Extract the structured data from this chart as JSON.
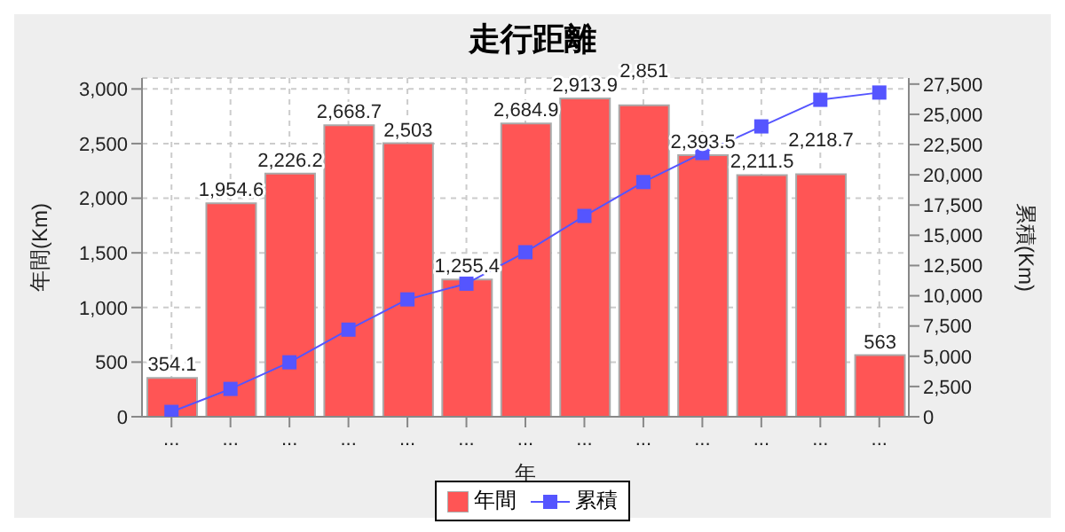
{
  "chart_data": {
    "type": "bar",
    "title": "走行距離",
    "xlabel": "年",
    "ylabel": "年間(Km)",
    "y2label": "累積(Km)",
    "categories": [
      "...",
      "...",
      "...",
      "...",
      "...",
      "...",
      "...",
      "...",
      "...",
      "...",
      "...",
      "...",
      "..."
    ],
    "series": [
      {
        "name": "年間",
        "color": "#ff5555",
        "values": [
          354.1,
          1954.6,
          2226.2,
          2668.7,
          2503,
          1255.4,
          2684.9,
          2913.9,
          2851,
          2393.5,
          2211.5,
          2218.7,
          563
        ],
        "value_labels": [
          "354.1",
          "1,954.6",
          "2,226.2",
          "2,668.7",
          "2,503",
          "1,255.4",
          "2,684.9",
          "2,913.9",
          "2,851",
          "2,393.5",
          "2,211.5",
          "2,218.7",
          "563"
        ]
      },
      {
        "name": "累積",
        "type": "line",
        "axis": "y2",
        "color": "#5555ff",
        "marker": "square",
        "values": [
          400,
          2300,
          4500,
          7200,
          9700,
          11000,
          13600,
          16600,
          19400,
          21800,
          24000,
          26200,
          26800
        ]
      }
    ],
    "ylim": [
      0,
      3100
    ],
    "yticks": [
      {
        "value": 0,
        "label": "0"
      },
      {
        "value": 500,
        "label": "500"
      },
      {
        "value": 1000,
        "label": "1,000"
      },
      {
        "value": 1500,
        "label": "1,500"
      },
      {
        "value": 2000,
        "label": "2,000"
      },
      {
        "value": 2500,
        "label": "2,500"
      },
      {
        "value": 3000,
        "label": "3,000"
      }
    ],
    "y2lim": [
      0,
      28000
    ],
    "y2ticks": [
      {
        "value": 0,
        "label": "0"
      },
      {
        "value": 2500,
        "label": "2,500"
      },
      {
        "value": 5000,
        "label": "5,000"
      },
      {
        "value": 7500,
        "label": "7,500"
      },
      {
        "value": 10000,
        "label": "10,000"
      },
      {
        "value": 12500,
        "label": "12,500"
      },
      {
        "value": 15000,
        "label": "15,000"
      },
      {
        "value": 17500,
        "label": "17,500"
      },
      {
        "value": 20000,
        "label": "20,000"
      },
      {
        "value": 22500,
        "label": "22,500"
      },
      {
        "value": 25000,
        "label": "25,000"
      },
      {
        "value": 27500,
        "label": "27,500"
      }
    ],
    "grid": true,
    "legend": "bottom"
  }
}
